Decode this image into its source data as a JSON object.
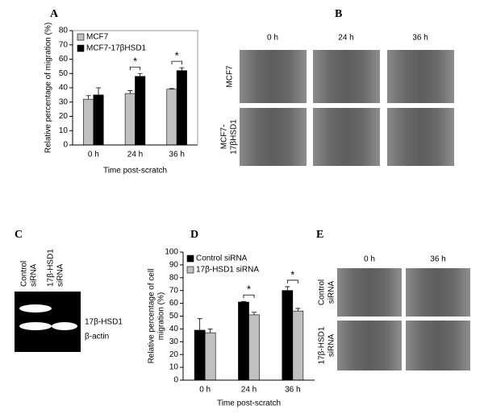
{
  "panel_labels": [
    "A",
    "B",
    "C",
    "D",
    "E"
  ],
  "chart_data": [
    {
      "type": "bar",
      "ylabel": [
        "Relative percentage of migration (%)"
      ],
      "xlabel": "Time post-scratch",
      "categories": [
        "0 h",
        "24 h",
        "36 h"
      ],
      "series": [
        {
          "name": "MCF7",
          "color": "#c0c0c0",
          "values": [
            32,
            36,
            39
          ],
          "errors": [
            2.5,
            2,
            0.5
          ]
        },
        {
          "name": "MCF7-17βHSD1",
          "color": "#000000",
          "values": [
            35,
            48,
            52
          ],
          "errors": [
            5,
            2,
            2
          ]
        }
      ],
      "ylim": [
        0,
        80
      ],
      "yticks": [
        0,
        10,
        20,
        30,
        40,
        50,
        60,
        70,
        80
      ],
      "frame": true,
      "legend": "top-left",
      "annotations": [
        {
          "text": "*",
          "category": "24 h"
        },
        {
          "text": "*",
          "category": "36 h"
        }
      ]
    },
    {
      "type": "bar",
      "ylabel": [
        "Relative percentage of cell",
        "migration (%)"
      ],
      "xlabel": "Time post-scratch",
      "categories": [
        "0 h",
        "24 h",
        "36 h"
      ],
      "series": [
        {
          "name": "Control siRNA",
          "color": "#000000",
          "values": [
            39,
            61,
            70
          ],
          "errors": [
            9,
            0.5,
            3
          ]
        },
        {
          "name": "17β-HSD1 siRNA",
          "color": "#c0c0c0",
          "values": [
            37,
            51,
            54
          ],
          "errors": [
            3,
            2,
            2
          ]
        }
      ],
      "ylim": [
        0,
        100
      ],
      "yticks": [
        0,
        10,
        20,
        30,
        40,
        50,
        60,
        70,
        80,
        90,
        100
      ],
      "frame": false,
      "legend": "top-left",
      "annotations": [
        {
          "text": "*",
          "category": "24 h"
        },
        {
          "text": "*",
          "category": "36 h"
        }
      ]
    }
  ],
  "panel_b": {
    "columns": [
      "0 h",
      "24 h",
      "36 h"
    ],
    "rows": [
      [
        "MCF7"
      ],
      [
        "MCF7-",
        "17βHSD1"
      ]
    ]
  },
  "panel_c": {
    "lanes": [
      [
        "Control",
        "siRNA"
      ],
      [
        "17β-HSD1",
        "siRNA"
      ]
    ],
    "bands": [
      "17β-HSD1",
      "β-actin"
    ]
  },
  "panel_e": {
    "columns": [
      "0 h",
      "36 h"
    ],
    "rows": [
      [
        "Control",
        "siRNA"
      ],
      [
        "17β-HSD1",
        "siRNA"
      ]
    ]
  }
}
